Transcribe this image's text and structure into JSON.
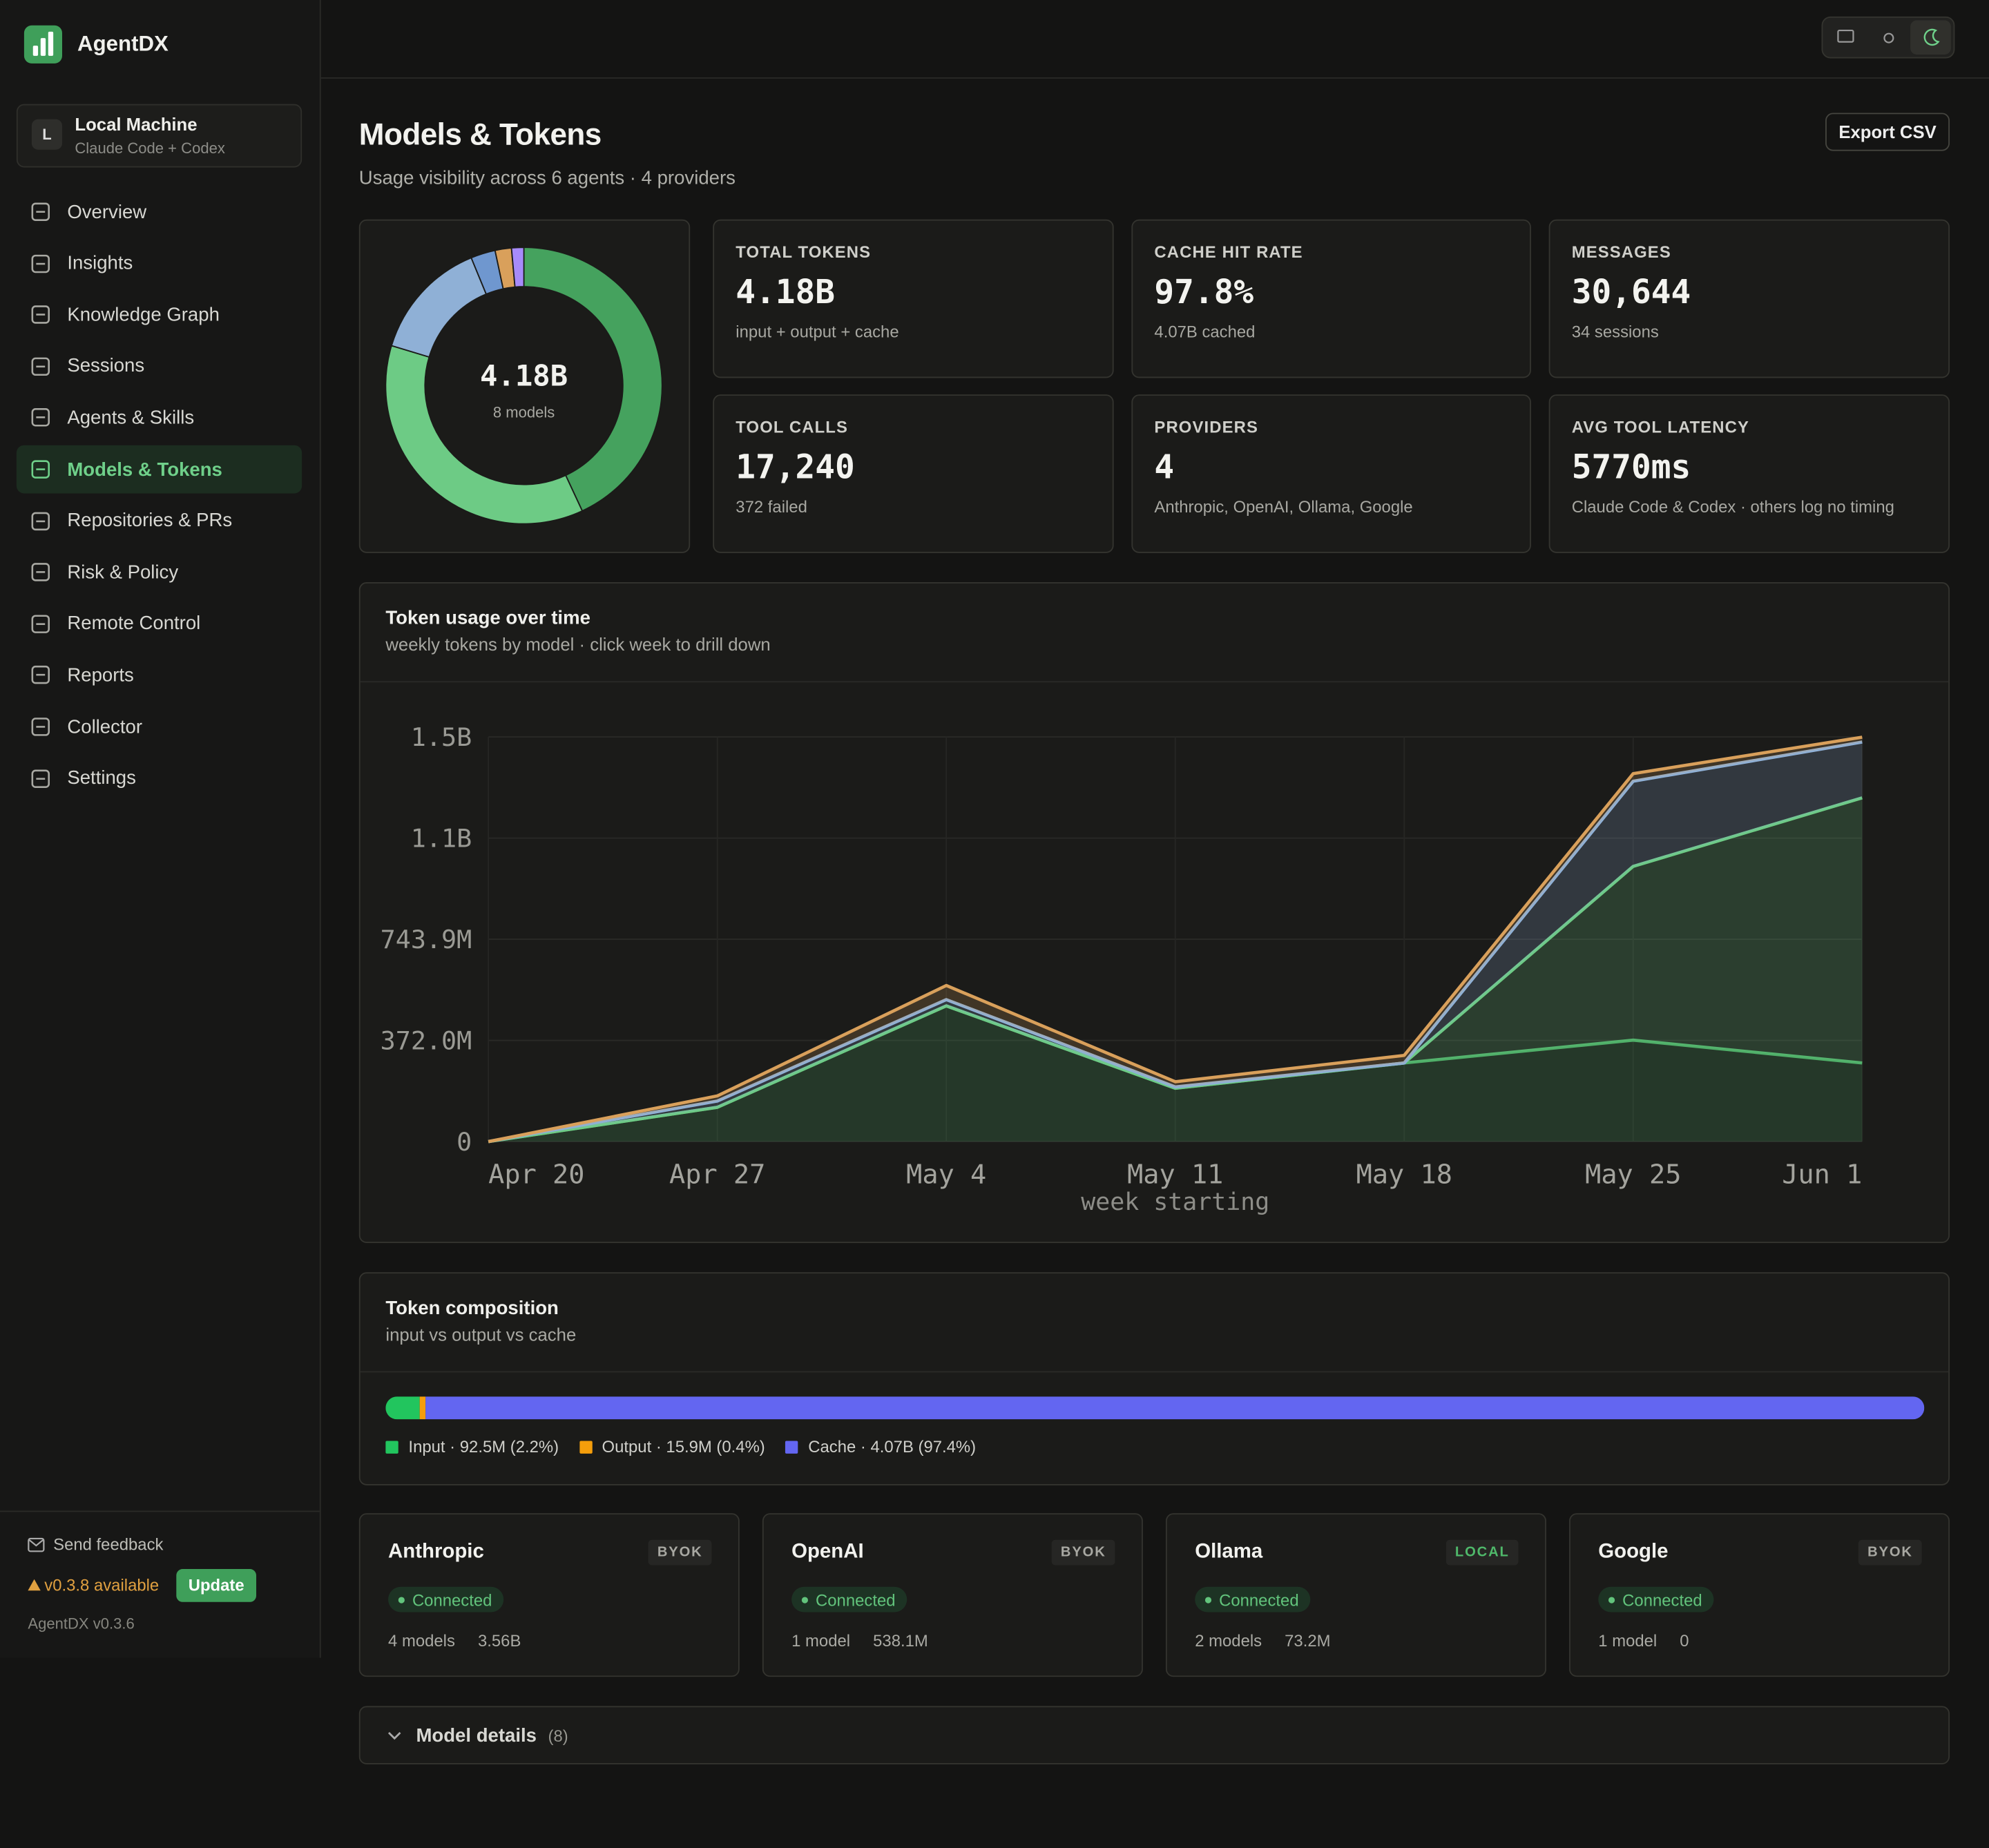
{
  "sidebar": {
    "brand": "AgentDX",
    "machine": {
      "initial": "L",
      "name": "Local Machine",
      "detail": "Claude Code + Codex"
    },
    "nav": [
      "Overview",
      "Insights",
      "Knowledge Graph",
      "Sessions",
      "Agents & Skills",
      "Models & Tokens",
      "Repositories & PRs",
      "Risk & Policy",
      "Remote Control",
      "Reports",
      "Collector",
      "Settings"
    ],
    "active_nav": 5,
    "footer": {
      "feedback": "Send feedback",
      "update_notice": "v0.3.8 available",
      "update_button": "Update",
      "version": "AgentDX v0.3.6"
    }
  },
  "header": {
    "title": "Models & Tokens",
    "subtitle": "Usage visibility across 6 agents · 4 providers",
    "export": "Export CSV"
  },
  "stats": [
    {
      "label": "TOTAL TOKENS",
      "value": "4.18B",
      "detail": "input + output + cache"
    },
    {
      "label": "CACHE HIT RATE",
      "value": "97.8%",
      "detail": "4.07B cached"
    },
    {
      "label": "MESSAGES",
      "value": "30,644",
      "detail": "34 sessions"
    },
    {
      "label": "TOOL CALLS",
      "value": "17,240",
      "detail": "372 failed"
    },
    {
      "label": "PROVIDERS",
      "value": "4",
      "detail": "Anthropic, OpenAI, Ollama, Google"
    },
    {
      "label": "AVG TOOL LATENCY",
      "value": "5770ms",
      "detail": "Claude Code & Codex · others log no timing"
    }
  ],
  "chart_data": [
    {
      "type": "donut",
      "center_label": "4.18B",
      "center_sublabel": "8 models",
      "values": [
        1800000000,
        1530000000,
        590000000,
        120000000,
        80000000,
        60000000
      ],
      "colors": [
        "#45a25e",
        "#6dcb85",
        "#8fb0d6",
        "#6f97cf",
        "#d9a05b",
        "#a78bfa"
      ]
    },
    {
      "type": "area",
      "title": "Token usage over time",
      "subtitle": "weekly tokens by model · click week to drill down",
      "x_label": "week starting",
      "categories": [
        "Apr 20",
        "Apr 27",
        "May 4",
        "May 11",
        "May 18",
        "May 25",
        "Jun 1"
      ],
      "series": [
        {
          "color": "#4fae68",
          "values": [
            0,
            126000000,
            499000000,
            196000000,
            289000000,
            373000000,
            289000000
          ]
        },
        {
          "color": "#6dcb85",
          "values": [
            0,
            0,
            0,
            0,
            0,
            639000000,
            975000000
          ]
        },
        {
          "color": "#8fb0d6",
          "values": [
            0,
            23000000,
            23000000,
            5000000,
            0,
            313000000,
            205000000
          ]
        },
        {
          "color": "#d9a05b",
          "values": [
            0,
            19000000,
            52000000,
            19000000,
            28000000,
            28000000,
            18000000
          ]
        }
      ],
      "ylim": [
        0,
        1487800000
      ],
      "yticks": [
        0,
        {
          "value": 371950000,
          "label": "372.0M"
        },
        {
          "value": 743900000,
          "label": "743.9M"
        },
        {
          "value": 1115850000,
          "label": "1.1B"
        },
        {
          "value": 1487800000,
          "label": "1.5B"
        }
      ],
      "grid": true
    },
    {
      "type": "stacked-bar",
      "title": "Token composition",
      "subtitle": "input vs output vs cache",
      "series": [
        {
          "name": "Input · 92.5M (2.2%)",
          "color": "#22c55e",
          "values": [
            92500000
          ]
        },
        {
          "name": "Output · 15.9M (0.4%)",
          "color": "#f59e0b",
          "values": [
            15900000
          ]
        },
        {
          "name": "Cache · 4.07B (97.4%)",
          "color": "#6366f1",
          "values": [
            4070000000
          ]
        }
      ]
    }
  ],
  "providers": [
    {
      "name": "Anthropic",
      "badge": "BYOK",
      "badge_color": "#a8a8a2",
      "status": "Connected",
      "models": "4 models",
      "tokens": "3.56B"
    },
    {
      "name": "OpenAI",
      "badge": "BYOK",
      "badge_color": "#a8a8a2",
      "status": "Connected",
      "models": "1 model",
      "tokens": "538.1M"
    },
    {
      "name": "Ollama",
      "badge": "LOCAL",
      "badge_color": "#4fb86a",
      "status": "Connected",
      "models": "2 models",
      "tokens": "73.2M"
    },
    {
      "name": "Google",
      "badge": "BYOK",
      "badge_color": "#a8a8a2",
      "status": "Connected",
      "models": "1 model",
      "tokens": "0"
    }
  ],
  "model_details": {
    "label": "Model details",
    "count": "(8)"
  }
}
